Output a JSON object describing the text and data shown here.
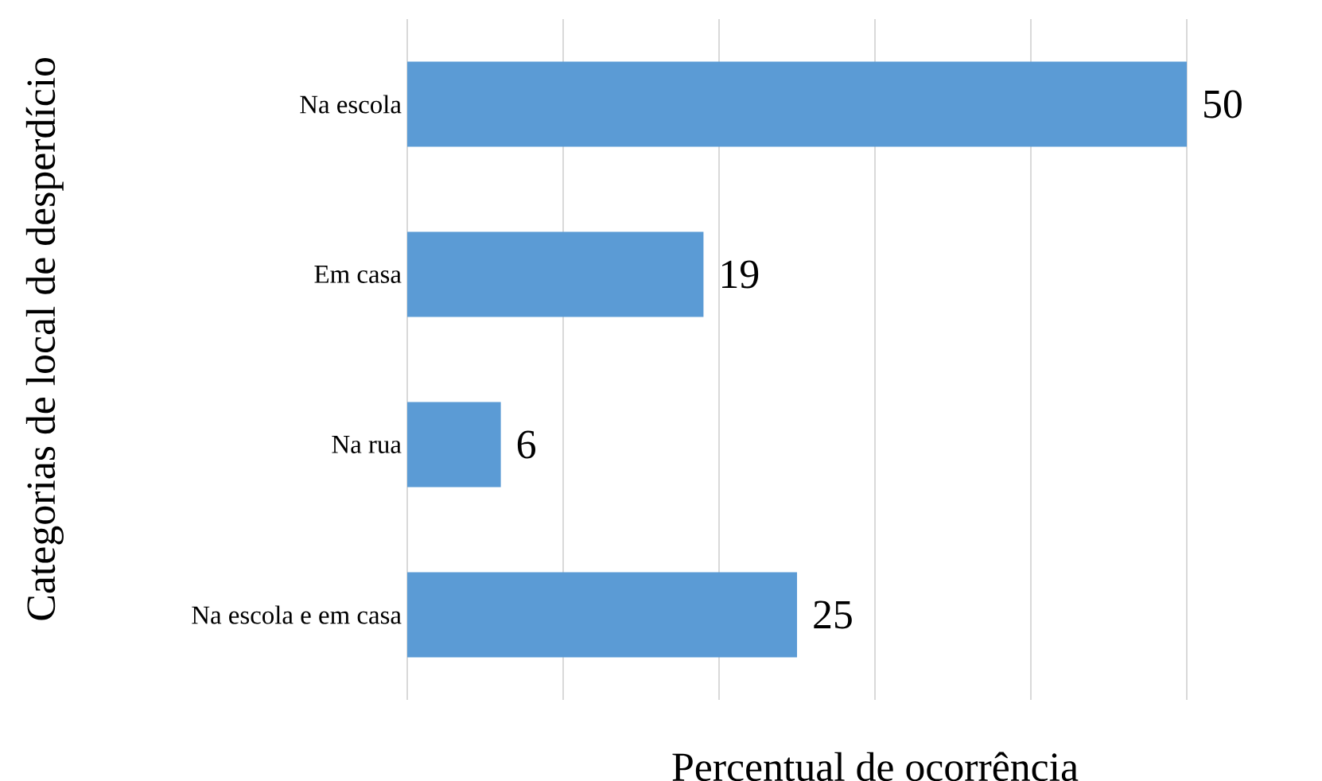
{
  "chart_data": {
    "type": "bar",
    "orientation": "horizontal",
    "xlabel": "Percentual de ocorrência",
    "ylabel": "Categorias de local de desperdício",
    "categories": [
      "Na escola",
      "Em casa",
      "Na rua",
      "Na escola e em casa"
    ],
    "values": [
      50,
      19,
      6,
      25
    ],
    "color": "#5b9bd5",
    "data_labels": true,
    "xlim": [
      0,
      50
    ],
    "xticks": [
      {
        "value": 0,
        "label": null
      },
      {
        "value": 10,
        "label": null
      },
      {
        "value": 20,
        "label": null
      },
      {
        "value": 30,
        "label": null
      },
      {
        "value": 40,
        "label": null
      },
      {
        "value": 50,
        "label": null
      }
    ],
    "grid": "x",
    "tick_labels": "y"
  }
}
